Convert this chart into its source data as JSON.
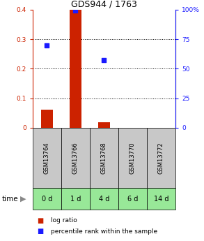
{
  "title": "GDS944 / 1763",
  "samples": [
    "GSM13764",
    "GSM13766",
    "GSM13768",
    "GSM13770",
    "GSM13772"
  ],
  "time_labels": [
    "0 d",
    "1 d",
    "4 d",
    "6 d",
    "14 d"
  ],
  "log_ratio": [
    0.062,
    0.4,
    0.018,
    0.0,
    0.0
  ],
  "percentile_rank": [
    0.7,
    0.99,
    0.57,
    null,
    null
  ],
  "bar_color": "#cc2200",
  "square_color": "#1a1aff",
  "ylim_left": [
    0,
    0.4
  ],
  "ylim_right": [
    0,
    100
  ],
  "yticks_left": [
    0,
    0.1,
    0.2,
    0.3,
    0.4
  ],
  "ytick_labels_left": [
    "0",
    "0.1",
    "0.2",
    "0.3",
    "0.4"
  ],
  "yticks_right": [
    0,
    25,
    50,
    75,
    100
  ],
  "ytick_labels_right": [
    "0",
    "25",
    "50",
    "75",
    "100%"
  ],
  "dotted_lines": [
    0.1,
    0.2,
    0.3
  ],
  "bar_width": 0.4,
  "square_size": 18,
  "gsm_row_color": "#c8c8c8",
  "time_row_color": "#98e898",
  "cell_border_color": "#000000",
  "legend_red_label": "log ratio",
  "legend_blue_label": "percentile rank within the sample",
  "time_label": "time",
  "fig_width": 2.93,
  "fig_height": 3.45,
  "dpi": 100
}
